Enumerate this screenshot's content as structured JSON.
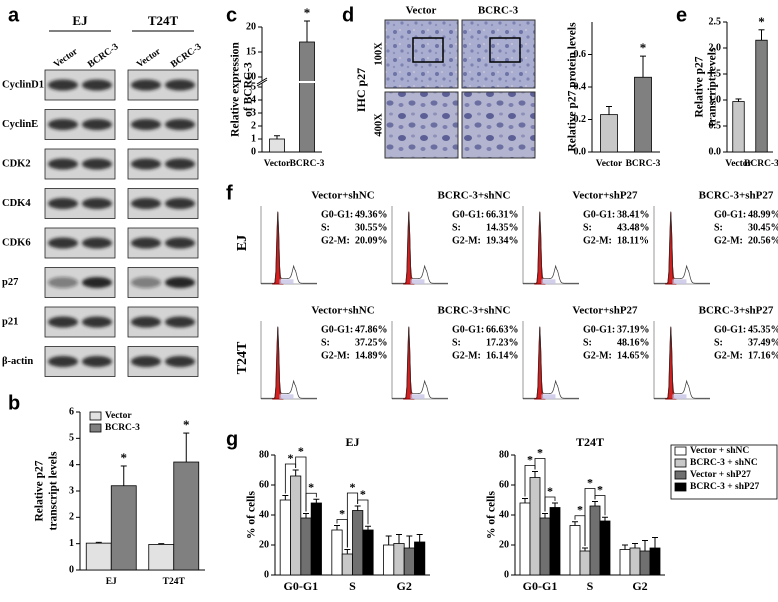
{
  "panels": {
    "a": "a",
    "b": "b",
    "c": "c",
    "d": "d",
    "e": "e",
    "f": "f",
    "g": "g"
  },
  "blot": {
    "cell_lines": [
      "EJ",
      "T24T"
    ],
    "lanes": [
      "Vector",
      "BCRC-3"
    ],
    "proteins": [
      "CyclinD1",
      "CyclinE",
      "CDK2",
      "CDK4",
      "CDK6",
      "p27",
      "p21",
      "β-actin"
    ]
  },
  "ihc": {
    "columns": [
      "Vector",
      "BCRC-3"
    ],
    "stain": "IHC p27",
    "magnifications": [
      "100X",
      "400X"
    ]
  },
  "flow": {
    "rows": [
      "EJ",
      "T24T"
    ],
    "phases": [
      "G0-G1:",
      "S:",
      "G2-M:"
    ],
    "panels": [
      [
        {
          "title": "Vector+shNC",
          "stats": [
            "49.36%",
            "30.55%",
            "20.09%"
          ]
        },
        {
          "title": "BCRC-3+shNC",
          "stats": [
            "66.31%",
            "14.35%",
            "19.34%"
          ]
        },
        {
          "title": "Vector+shP27",
          "stats": [
            "38.41%",
            "43.48%",
            "18.11%"
          ]
        },
        {
          "title": "BCRC-3+shP27",
          "stats": [
            "48.99%",
            "30.45%",
            "20.56%"
          ]
        }
      ],
      [
        {
          "title": "Vector+shNC",
          "stats": [
            "47.86%",
            "37.25%",
            "14.89%"
          ]
        },
        {
          "title": "BCRC-3+shNC",
          "stats": [
            "66.63%",
            "17.23%",
            "16.14%"
          ]
        },
        {
          "title": "Vector+shP27",
          "stats": [
            "37.19%",
            "48.16%",
            "14.65%"
          ]
        },
        {
          "title": "BCRC-3+shP27",
          "stats": [
            "45.35%",
            "37.49%",
            "17.16%"
          ]
        }
      ]
    ]
  },
  "chart_data": [
    {
      "type": "bar",
      "ylabel": [
        "Relative p27",
        "transcript levels"
      ],
      "categories": [
        "EJ",
        "T24T"
      ],
      "series": [
        {
          "name": "Vector",
          "color": "#e2e2e2",
          "values": [
            1.02,
            0.97
          ],
          "errors": [
            0.03,
            0.03
          ]
        },
        {
          "name": "BCRC-3",
          "color": "#808080",
          "values": [
            3.2,
            4.1
          ],
          "errors": [
            0.75,
            1.1
          ],
          "value_annotations": [
            "*",
            "*"
          ]
        }
      ],
      "ylim": [
        0,
        6
      ],
      "yticks": [
        0,
        1,
        2,
        3,
        4,
        5,
        6
      ],
      "legend": "upper-left"
    },
    {
      "type": "bar",
      "ylabel": [
        "Relative expression",
        "of  BCRC-3"
      ],
      "categories": [
        "Vector",
        "BCRC-3"
      ],
      "values": [
        1,
        17
      ],
      "errors": [
        0.25,
        4.2
      ],
      "value_annotations": [
        null,
        "*"
      ],
      "colors": [
        "#e2e2e2",
        "#808080"
      ],
      "ylim": [
        0,
        20
      ],
      "axis_break": [
        5,
        10
      ],
      "yticks": [
        0,
        1,
        2,
        3,
        4,
        5,
        10,
        15,
        20
      ]
    },
    {
      "type": "bar",
      "ylabel": [
        "Relative p27 protein levels"
      ],
      "categories": [
        "Vector",
        "BCRC-3"
      ],
      "values": [
        0.23,
        0.46
      ],
      "errors": [
        0.05,
        0.13
      ],
      "value_annotations": [
        null,
        "*"
      ],
      "colors": [
        "#c8c8c8",
        "#808080"
      ],
      "ylim": [
        0,
        0.8
      ],
      "yticks": [
        {
          "value": 0,
          "label": "0.0"
        },
        0.2,
        0.4,
        0.6
      ]
    },
    {
      "type": "bar",
      "ylabel": [
        "Relative p27",
        "transcript levels"
      ],
      "categories": [
        "Vector",
        "BCRC-3"
      ],
      "values": [
        0.97,
        2.15
      ],
      "errors": [
        0.05,
        0.2
      ],
      "value_annotations": [
        null,
        "*"
      ],
      "colors": [
        "#c8c8c8",
        "#808080"
      ],
      "ylim": [
        0,
        2.5
      ],
      "yticks": [
        {
          "value": 0,
          "label": "0.0"
        },
        0.5,
        {
          "value": 1,
          "label": "1.0"
        },
        1.5,
        {
          "value": 2,
          "label": "2.0"
        },
        2.5
      ]
    },
    {
      "type": "bar",
      "title": "EJ",
      "ylabel": [
        "% of cells"
      ],
      "categories": [
        "G0-G1",
        "S",
        "G2"
      ],
      "series": [
        {
          "color": "#ffffff",
          "values": [
            50,
            30,
            20
          ],
          "errors": [
            3,
            3,
            6
          ]
        },
        {
          "color": "#c8c8c8",
          "values": [
            66,
            14,
            21
          ],
          "errors": [
            4,
            3,
            6
          ]
        },
        {
          "color": "#707070",
          "values": [
            38,
            43,
            18
          ],
          "errors": [
            3,
            3,
            8
          ]
        },
        {
          "color": "#000000",
          "values": [
            48,
            30,
            22
          ],
          "errors": [
            2.5,
            2.5,
            5
          ]
        }
      ],
      "comparisons": [
        {
          "category": 0,
          "bars": [
            0,
            1
          ],
          "label": "*"
        },
        {
          "category": 0,
          "bars": [
            1,
            2
          ],
          "label": "*"
        },
        {
          "category": 0,
          "bars": [
            2,
            3
          ],
          "label": "*"
        },
        {
          "category": 1,
          "bars": [
            0,
            1
          ],
          "label": "*"
        },
        {
          "category": 1,
          "bars": [
            1,
            2
          ],
          "label": "*"
        },
        {
          "category": 1,
          "bars": [
            2,
            3
          ],
          "label": "*"
        }
      ],
      "ylim": [
        0,
        80
      ],
      "yticks": [
        0,
        20,
        40,
        60,
        80
      ]
    },
    {
      "type": "bar",
      "title": "T24T",
      "ylabel": [
        "% of cells"
      ],
      "categories": [
        "G0-G1",
        "S",
        "G2"
      ],
      "series": [
        {
          "name": "Vector + shNC",
          "color": "#ffffff",
          "values": [
            48,
            33,
            17
          ],
          "errors": [
            3,
            2.5,
            3
          ]
        },
        {
          "name": "BCRC-3 + shNC",
          "color": "#c8c8c8",
          "values": [
            65,
            16,
            18
          ],
          "errors": [
            4,
            2,
            3
          ]
        },
        {
          "name": "Vector + shP27",
          "color": "#707070",
          "values": [
            38,
            46,
            16
          ],
          "errors": [
            3,
            3,
            7
          ]
        },
        {
          "name": "BCRC-3 + shP27",
          "color": "#000000",
          "values": [
            45,
            36,
            18
          ],
          "errors": [
            3,
            2.5,
            7
          ]
        }
      ],
      "comparisons": [
        {
          "category": 0,
          "bars": [
            0,
            1
          ],
          "label": "*"
        },
        {
          "category": 0,
          "bars": [
            1,
            2
          ],
          "label": "*"
        },
        {
          "category": 0,
          "bars": [
            2,
            3
          ],
          "label": "*"
        },
        {
          "category": 1,
          "bars": [
            0,
            1
          ],
          "label": "*"
        },
        {
          "category": 1,
          "bars": [
            1,
            2
          ],
          "label": "*"
        },
        {
          "category": 1,
          "bars": [
            2,
            3
          ],
          "label": "*"
        }
      ],
      "ylim": [
        0,
        80
      ],
      "yticks": [
        0,
        20,
        40,
        60,
        80
      ],
      "legend": "right"
    }
  ]
}
